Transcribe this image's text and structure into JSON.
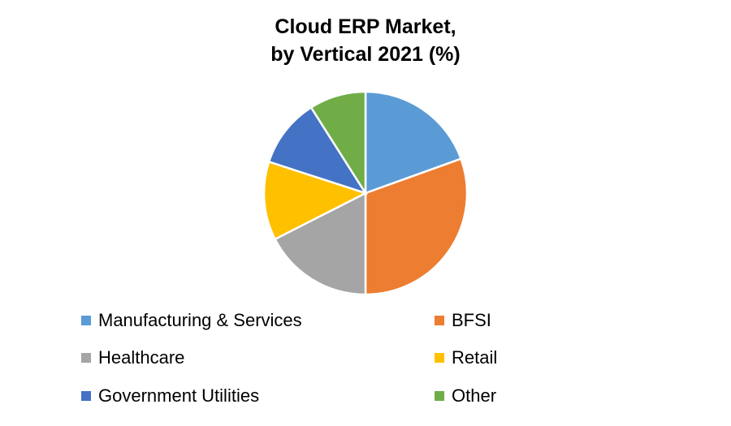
{
  "chart_data": {
    "type": "pie",
    "title": "Cloud ERP Market, by Vertical 2021 (%)",
    "title_lines": [
      "Cloud ERP Market,",
      "by Vertical 2021 (%)"
    ],
    "slices": [
      {
        "label": "Manufacturing & Services",
        "value": 19.5,
        "color": "#5B9BD5"
      },
      {
        "label": "BFSI",
        "value": 30.5,
        "color": "#ED7D31"
      },
      {
        "label": "Healthcare",
        "value": 17.5,
        "color": "#A5A5A5"
      },
      {
        "label": "Retail",
        "value": 12.5,
        "color": "#FFC000"
      },
      {
        "label": "Government Utilities",
        "value": 11.0,
        "color": "#4472C4"
      },
      {
        "label": "Other",
        "value": 9.0,
        "color": "#70AD47"
      }
    ],
    "legend_position": "bottom"
  }
}
